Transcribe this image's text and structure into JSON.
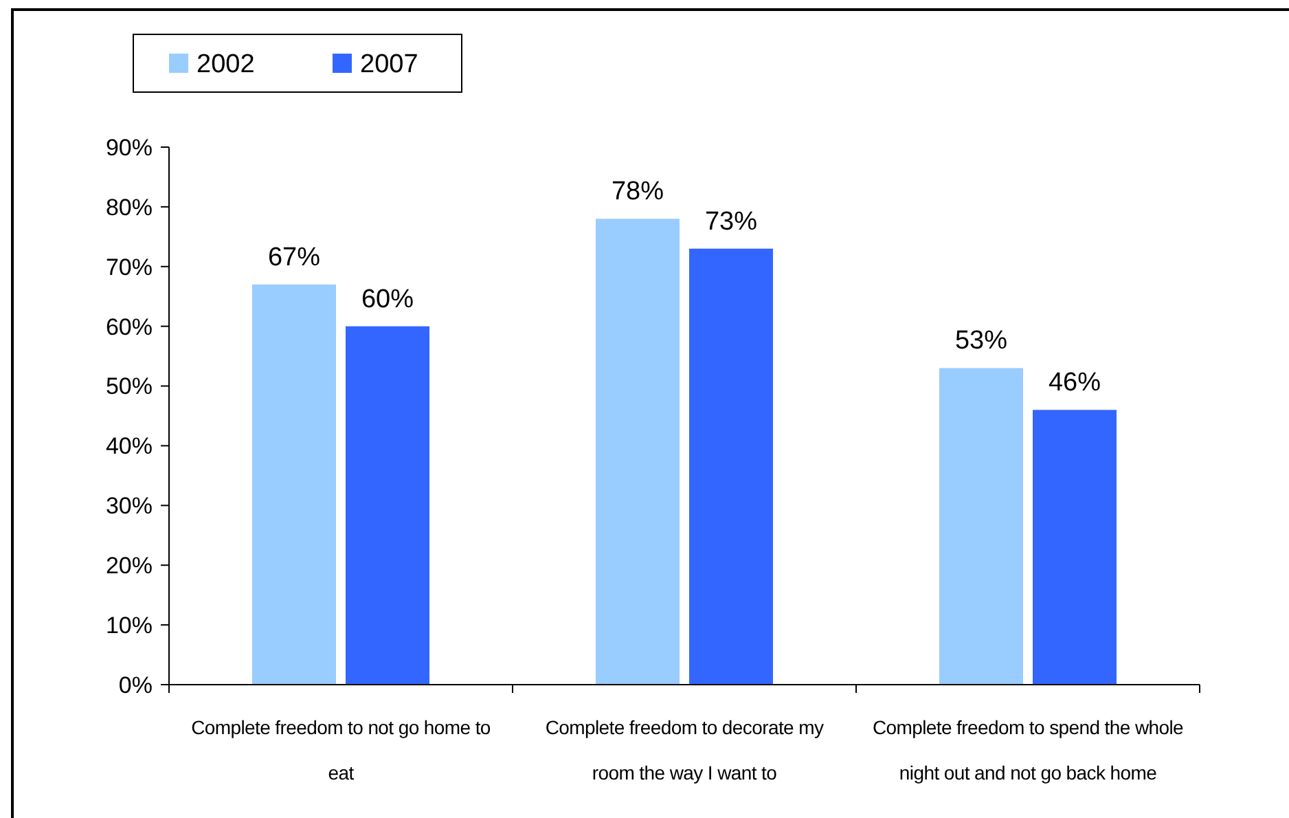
{
  "chart_data": {
    "type": "bar",
    "categories": [
      "Complete freedom to not go home to eat",
      "Complete freedom to decorate my room the way I want to",
      "Complete freedom to spend the whole night out and not go back home"
    ],
    "series": [
      {
        "name": "2002",
        "color": "#99ccff",
        "values": [
          67,
          78,
          53
        ],
        "value_labels": [
          "67%",
          "78%",
          "53%"
        ]
      },
      {
        "name": "2007",
        "color": "#3366ff",
        "values": [
          60,
          73,
          46
        ],
        "value_labels": [
          "60%",
          "73%",
          "46%"
        ]
      }
    ],
    "ylim": [
      0,
      90
    ],
    "yticks": [
      {
        "value": 0,
        "label": "0%"
      },
      {
        "value": 10,
        "label": "10%"
      },
      {
        "value": 20,
        "label": "20%"
      },
      {
        "value": 30,
        "label": "30%"
      },
      {
        "value": 40,
        "label": "40%"
      },
      {
        "value": 50,
        "label": "50%"
      },
      {
        "value": 60,
        "label": "60%"
      },
      {
        "value": 70,
        "label": "70%"
      },
      {
        "value": 80,
        "label": "80%"
      },
      {
        "value": 90,
        "label": "90%"
      }
    ],
    "grid": false,
    "legend": "top left"
  }
}
